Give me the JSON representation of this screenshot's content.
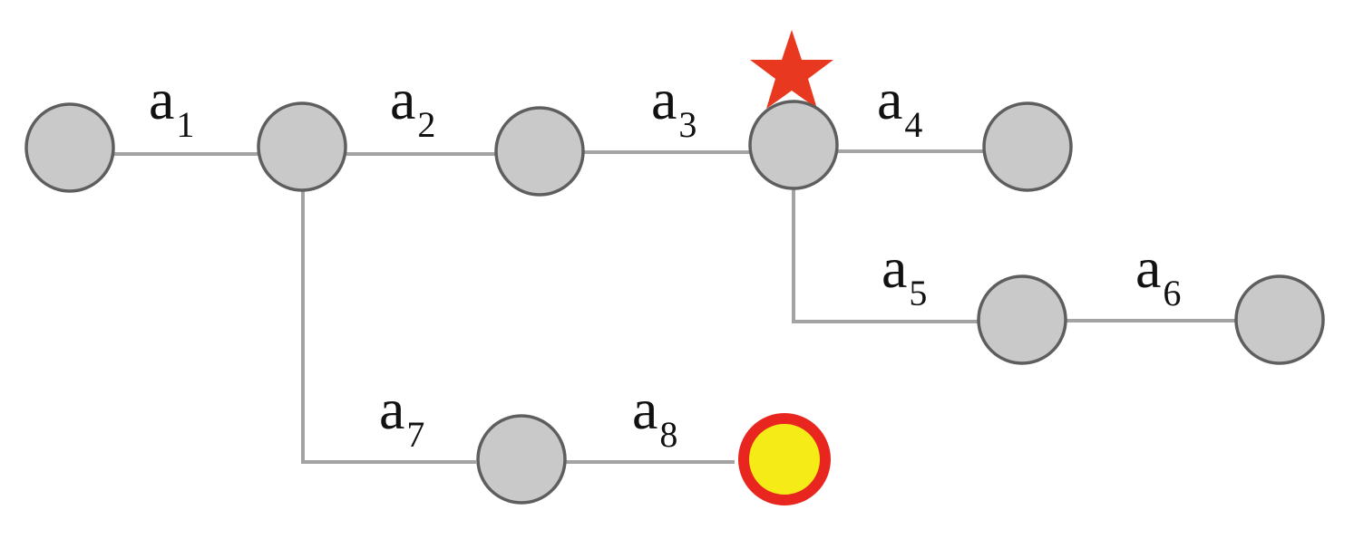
{
  "diagram": {
    "edge_labels": [
      {
        "id": "a1",
        "base": "a",
        "sub": "1"
      },
      {
        "id": "a2",
        "base": "a",
        "sub": "2"
      },
      {
        "id": "a3",
        "base": "a",
        "sub": "3"
      },
      {
        "id": "a4",
        "base": "a",
        "sub": "4"
      },
      {
        "id": "a5",
        "base": "a",
        "sub": "5"
      },
      {
        "id": "a6",
        "base": "a",
        "sub": "6"
      },
      {
        "id": "a7",
        "base": "a",
        "sub": "7"
      },
      {
        "id": "a8",
        "base": "a",
        "sub": "8"
      }
    ],
    "colors": {
      "node_fill": "#c8c9c8",
      "node_stroke": "#5e5e5e",
      "edge": "#a3a3a3",
      "star": "#e8381f",
      "goal_fill": "#f5eb16",
      "goal_ring": "#e8261f"
    },
    "marker_icon": "star-icon",
    "goal_node": "highlighted-node"
  }
}
